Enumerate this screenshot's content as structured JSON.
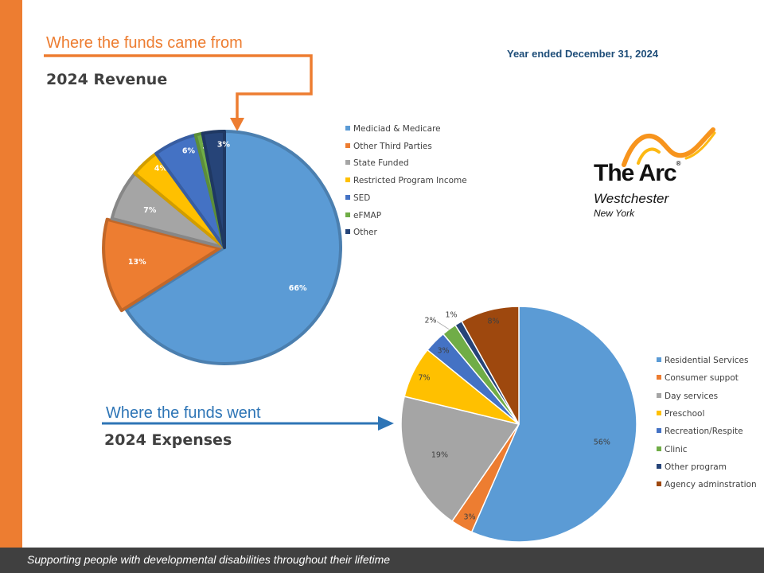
{
  "slide": {
    "revenue_heading": "Where the funds came from",
    "revenue_title": "2024 Revenue",
    "expenses_heading": "Where the funds went",
    "expenses_title": "2024 Expenses",
    "period": "Year ended December 31, 2024",
    "footer": "Supporting people with developmental disabilities throughout their lifetime"
  },
  "logo": {
    "name": "The Arc",
    "mark": "®",
    "line2": "Westchester",
    "line3": "New York"
  },
  "colors": {
    "accent_orange": "#ED7D31",
    "accent_blue": "#2E75B6",
    "footer_bg": "#404040"
  },
  "chart_data": [
    {
      "type": "pie",
      "title": "2024 Revenue",
      "categories": [
        "Mediciad & Medicare",
        "Other Third Parties",
        "State Funded",
        "Restricted Program Income",
        "SED",
        "eFMAP",
        "Other"
      ],
      "values": [
        66,
        13,
        7,
        4,
        6,
        1,
        3
      ],
      "labels": [
        "66%",
        "13%",
        "7%",
        "4%",
        "6%",
        "1%",
        "3%"
      ],
      "colors": [
        "#5B9BD5",
        "#ED7D31",
        "#A5A5A5",
        "#FFC000",
        "#4472C4",
        "#70AD47",
        "#264478"
      ],
      "legend_position": "right"
    },
    {
      "type": "pie",
      "title": "2024 Expenses",
      "categories": [
        "Residential Services",
        "Consumer suppot",
        "Day services",
        "Preschool",
        "Recreation/Respite",
        "Clinic",
        "Other program",
        "Agency adminstration"
      ],
      "values": [
        56,
        3,
        19,
        7,
        3,
        2,
        1,
        8
      ],
      "labels": [
        "56%",
        "3%",
        "19%",
        "7%",
        "3%",
        "2%",
        "1%",
        "8%"
      ],
      "colors": [
        "#5B9BD5",
        "#ED7D31",
        "#A5A5A5",
        "#FFC000",
        "#4472C4",
        "#70AD47",
        "#264478",
        "#9E480E"
      ],
      "legend_position": "right"
    }
  ]
}
